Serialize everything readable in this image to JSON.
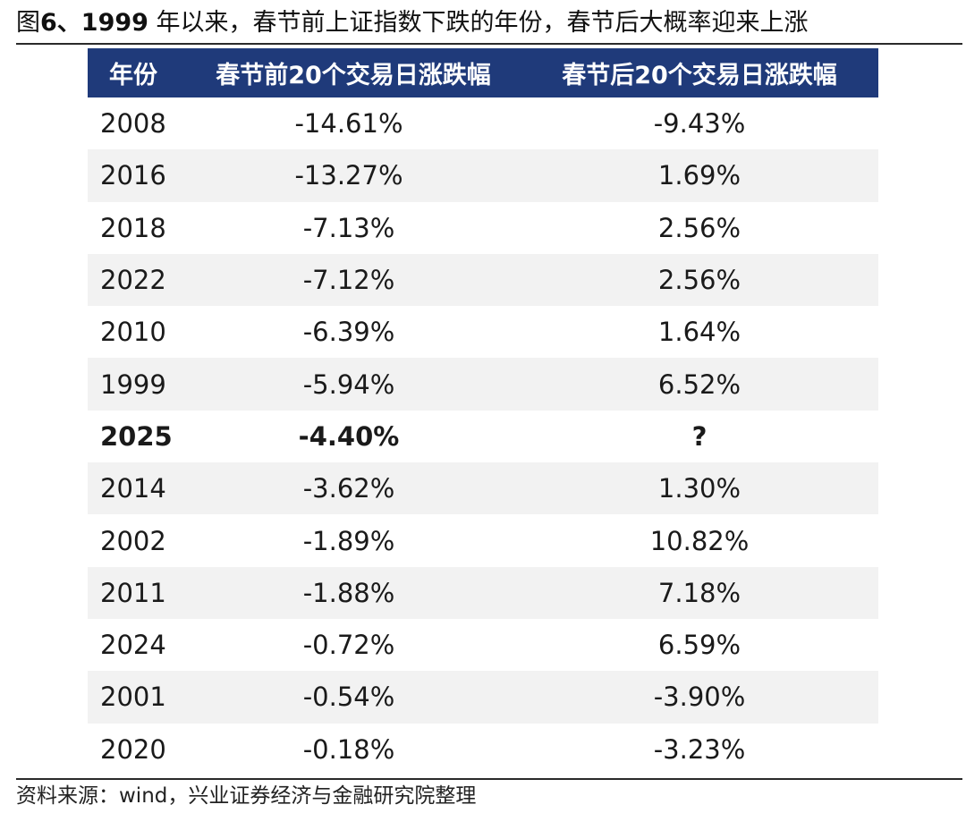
{
  "title": {
    "prefix": "图",
    "figure_no": "6、1999",
    "text": " 年以来，春节前上证指数下跌的年份，春节后大概率迎来上涨"
  },
  "table": {
    "headers": [
      "年份",
      "春节前20个交易日涨跌幅",
      "春节后20个交易日涨跌幅"
    ],
    "highlight_year": "2025",
    "rows": [
      {
        "year": "2008",
        "pre": "-14.61%",
        "post": "-9.43%"
      },
      {
        "year": "2016",
        "pre": "-13.27%",
        "post": "1.69%"
      },
      {
        "year": "2018",
        "pre": "-7.13%",
        "post": "2.56%"
      },
      {
        "year": "2022",
        "pre": "-7.12%",
        "post": "2.56%"
      },
      {
        "year": "2010",
        "pre": "-6.39%",
        "post": "1.64%"
      },
      {
        "year": "1999",
        "pre": "-5.94%",
        "post": "6.52%"
      },
      {
        "year": "2025",
        "pre": "-4.40%",
        "post": "?"
      },
      {
        "year": "2014",
        "pre": "-3.62%",
        "post": "1.30%"
      },
      {
        "year": "2002",
        "pre": "-1.89%",
        "post": "10.82%"
      },
      {
        "year": "2011",
        "pre": "-1.88%",
        "post": "7.18%"
      },
      {
        "year": "2024",
        "pre": "-0.72%",
        "post": "6.59%"
      },
      {
        "year": "2001",
        "pre": "-0.54%",
        "post": "-3.90%"
      },
      {
        "year": "2020",
        "pre": "-0.18%",
        "post": "-3.23%"
      }
    ]
  },
  "source": "资料来源：wind，兴业证券经济与金融研究院整理",
  "colors": {
    "header_bg": "#1f3a7a",
    "header_text": "#ffffff",
    "alt_row_bg": "#f2f2f2"
  }
}
